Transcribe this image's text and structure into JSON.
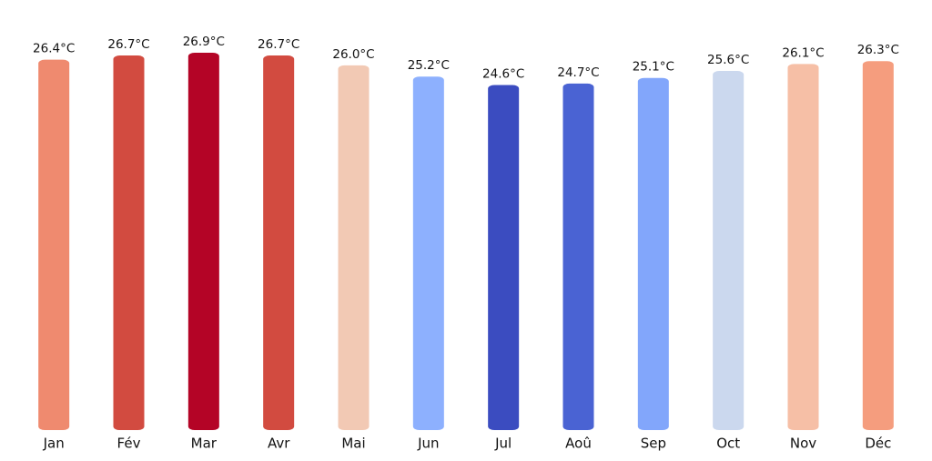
{
  "chart_data": {
    "type": "bar",
    "categories": [
      "Jan",
      "Fév",
      "Mar",
      "Avr",
      "Mai",
      "Jun",
      "Jul",
      "Aoû",
      "Sep",
      "Oct",
      "Nov",
      "Déc"
    ],
    "values": [
      26.4,
      26.7,
      26.9,
      26.7,
      26.0,
      25.2,
      24.6,
      24.7,
      25.1,
      25.6,
      26.1,
      26.3
    ],
    "value_labels": [
      "26.4°C",
      "26.7°C",
      "26.9°C",
      "26.7°C",
      "26.0°C",
      "25.2°C",
      "24.6°C",
      "24.7°C",
      "25.1°C",
      "25.6°C",
      "26.1°C",
      "26.3°C"
    ],
    "colors": [
      "#ef8a6f",
      "#d24b40",
      "#b40426",
      "#d24b40",
      "#f2c9b4",
      "#8db0fe",
      "#3b4cc0",
      "#4a63d3",
      "#82a6fb",
      "#cbd8ee",
      "#f6bfa6",
      "#f59d7e"
    ],
    "ylim": [
      0,
      28
    ]
  }
}
